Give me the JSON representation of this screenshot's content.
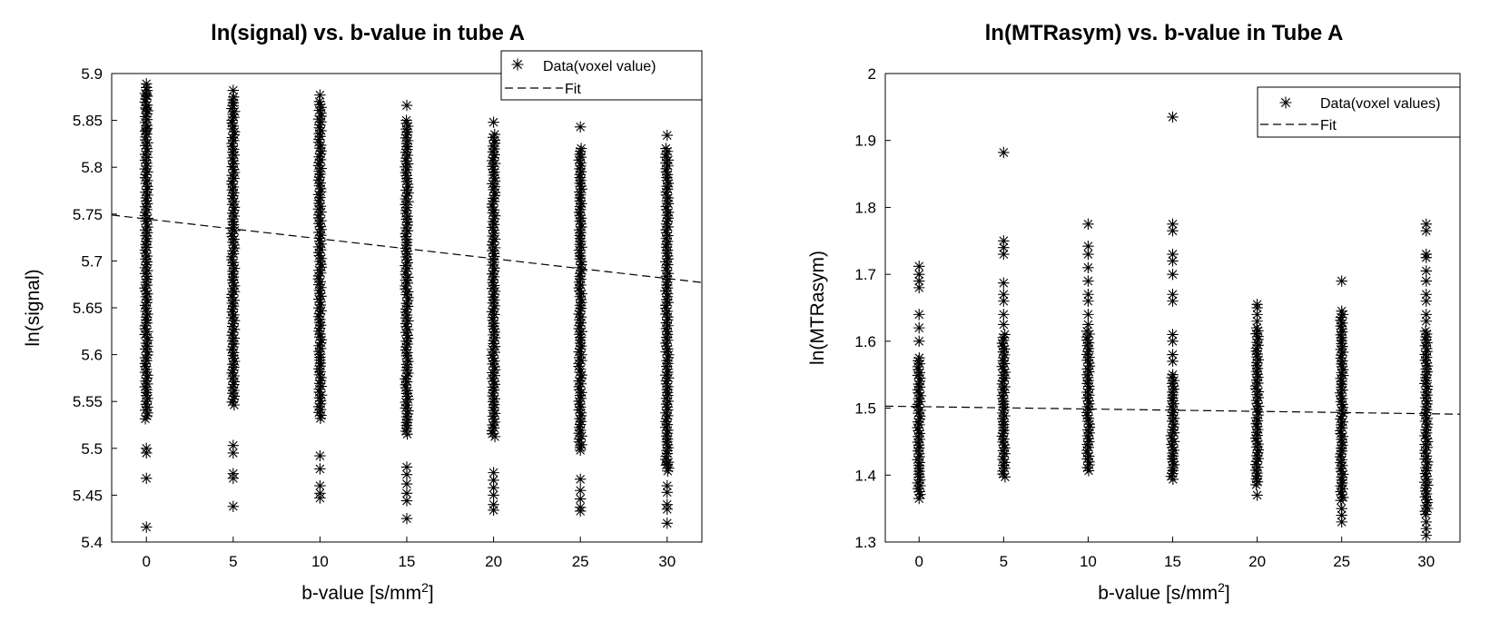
{
  "chart_data": [
    {
      "type": "scatter",
      "title": "ln(signal) vs. b-value in tube A",
      "xlabel": "b-value [s/mm²]",
      "ylabel": "ln(signal)",
      "xlim": [
        -2,
        32
      ],
      "ylim": [
        5.4,
        5.9
      ],
      "xticks": [
        0,
        5,
        10,
        15,
        20,
        25,
        30
      ],
      "yticks": [
        5.4,
        5.45,
        5.5,
        5.55,
        5.6,
        5.65,
        5.7,
        5.75,
        5.8,
        5.85,
        5.9
      ],
      "ytick_labels": [
        "5.4",
        "5.45",
        "5.5",
        "5.55",
        "5.6",
        "5.65",
        "5.7",
        "5.75",
        "5.8",
        "5.85",
        "5.9"
      ],
      "legend": {
        "placement": "top-right",
        "entries": [
          "Data(voxel value)",
          "Fit"
        ]
      },
      "series": [
        {
          "name": "Data(voxel value)",
          "marker": "asterisk",
          "groups": [
            {
              "x": 0,
              "dense_range": [
                5.53,
                5.885
              ],
              "values": [
                5.889,
                5.877,
                5.862,
                5.84,
                5.5,
                5.495,
                5.468,
                5.416
              ]
            },
            {
              "x": 5,
              "dense_range": [
                5.545,
                5.875
              ],
              "values": [
                5.882,
                5.503,
                5.495,
                5.473,
                5.468,
                5.438
              ]
            },
            {
              "x": 10,
              "dense_range": [
                5.53,
                5.87
              ],
              "values": [
                5.877,
                5.492,
                5.478,
                5.46,
                5.452,
                5.447
              ]
            },
            {
              "x": 15,
              "dense_range": [
                5.515,
                5.85
              ],
              "values": [
                5.866,
                5.48,
                5.472,
                5.462,
                5.452,
                5.444,
                5.425
              ]
            },
            {
              "x": 20,
              "dense_range": [
                5.51,
                5.835
              ],
              "values": [
                5.848,
                5.474,
                5.466,
                5.458,
                5.45,
                5.44,
                5.434
              ]
            },
            {
              "x": 25,
              "dense_range": [
                5.5,
                5.82
              ],
              "values": [
                5.843,
                5.498,
                5.467,
                5.455,
                5.446,
                5.437,
                5.433
              ]
            },
            {
              "x": 30,
              "dense_range": [
                5.475,
                5.82
              ],
              "values": [
                5.834,
                5.483,
                5.46,
                5.453,
                5.44,
                5.435,
                5.42
              ]
            }
          ]
        },
        {
          "name": "Fit",
          "type": "line",
          "style": "dashed",
          "x": [
            -2,
            32
          ],
          "y": [
            5.749,
            5.677
          ]
        }
      ]
    },
    {
      "type": "scatter",
      "title": "ln(MTRasym) vs. b-value in Tube A",
      "xlabel": "b-value [s/mm²]",
      "ylabel": "ln(MTRasym)",
      "xlim": [
        -2,
        32
      ],
      "ylim": [
        1.3,
        2.0
      ],
      "xticks": [
        0,
        5,
        10,
        15,
        20,
        25,
        30
      ],
      "yticks": [
        1.3,
        1.4,
        1.5,
        1.6,
        1.7,
        1.8,
        1.9,
        2.0
      ],
      "ytick_labels": [
        "1.3",
        "1.4",
        "1.5",
        "1.6",
        "1.7",
        "1.8",
        "1.9",
        "2"
      ],
      "legend": {
        "placement": "top-right",
        "entries": [
          "Data(voxel values)",
          "Fit"
        ]
      },
      "series": [
        {
          "name": "Data(voxel values)",
          "marker": "asterisk",
          "groups": [
            {
              "x": 0,
              "dense_range": [
                1.37,
                1.575
              ],
              "values": [
                1.712,
                1.7,
                1.69,
                1.68,
                1.64,
                1.62,
                1.6,
                1.365
              ]
            },
            {
              "x": 5,
              "dense_range": [
                1.395,
                1.61
              ],
              "values": [
                1.882,
                1.75,
                1.74,
                1.73,
                1.687,
                1.67,
                1.66,
                1.64,
                1.625
              ]
            },
            {
              "x": 10,
              "dense_range": [
                1.405,
                1.615
              ],
              "values": [
                1.775,
                1.742,
                1.73,
                1.71,
                1.69,
                1.67,
                1.66,
                1.64,
                1.625
              ]
            },
            {
              "x": 15,
              "dense_range": [
                1.39,
                1.55
              ],
              "values": [
                1.935,
                1.775,
                1.765,
                1.73,
                1.72,
                1.7,
                1.67,
                1.66,
                1.61,
                1.6,
                1.58,
                1.57
              ]
            },
            {
              "x": 20,
              "dense_range": [
                1.385,
                1.62
              ],
              "values": [
                1.655,
                1.65,
                1.64,
                1.63,
                1.37
              ]
            },
            {
              "x": 25,
              "dense_range": [
                1.36,
                1.64
              ],
              "values": [
                1.69,
                1.645,
                1.35,
                1.34,
                1.33
              ]
            },
            {
              "x": 30,
              "dense_range": [
                1.34,
                1.615
              ],
              "values": [
                1.775,
                1.765,
                1.73,
                1.725,
                1.705,
                1.69,
                1.67,
                1.66,
                1.64,
                1.63,
                1.33,
                1.32,
                1.31
              ]
            }
          ]
        },
        {
          "name": "Fit",
          "type": "line",
          "style": "dashed",
          "x": [
            -2,
            32
          ],
          "y": [
            1.503,
            1.491
          ]
        }
      ]
    }
  ]
}
